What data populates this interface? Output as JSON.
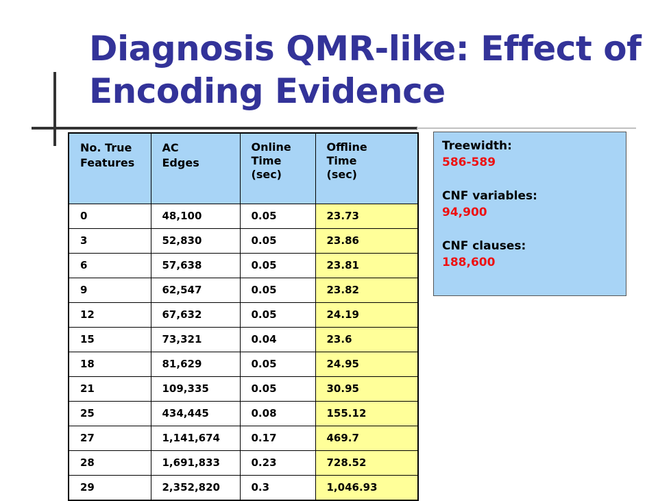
{
  "slide": {
    "title": "Diagnosis QMR-like: Effect of Encoding Evidence"
  },
  "table": {
    "headers": [
      [
        "No. True",
        "Features"
      ],
      [
        "AC",
        "Edges"
      ],
      [
        "Online",
        "Time",
        "(sec)"
      ],
      [
        "Offline",
        "Time",
        "(sec)"
      ]
    ],
    "rows": [
      [
        "0",
        "48,100",
        "0.05",
        "23.73"
      ],
      [
        "3",
        "52,830",
        "0.05",
        "23.86"
      ],
      [
        "6",
        "57,638",
        "0.05",
        "23.81"
      ],
      [
        "9",
        "62,547",
        "0.05",
        "23.82"
      ],
      [
        "12",
        "67,632",
        "0.05",
        "24.19"
      ],
      [
        "15",
        "73,321",
        "0.04",
        "23.6"
      ],
      [
        "18",
        "81,629",
        "0.05",
        "24.95"
      ],
      [
        "21",
        "109,335",
        "0.05",
        "30.95"
      ],
      [
        "25",
        "434,445",
        "0.08",
        "155.12"
      ],
      [
        "27",
        "1,141,674",
        "0.17",
        "469.7"
      ],
      [
        "28",
        "1,691,833",
        "0.23",
        "728.52"
      ],
      [
        "29",
        "2,352,820",
        "0.3",
        "1,046.93"
      ]
    ]
  },
  "info": {
    "treewidth_label": "Treewidth:",
    "treewidth_value": "586-589",
    "cnf_variables_label": "CNF variables:",
    "cnf_variables_value": "94,900",
    "cnf_clauses_label": "CNF clauses:",
    "cnf_clauses_value": "188,600"
  },
  "colors": {
    "title": "#333399",
    "header_bg": "#a8d4f6",
    "offline_bg": "#ffff99",
    "value_red": "#ee1111"
  }
}
